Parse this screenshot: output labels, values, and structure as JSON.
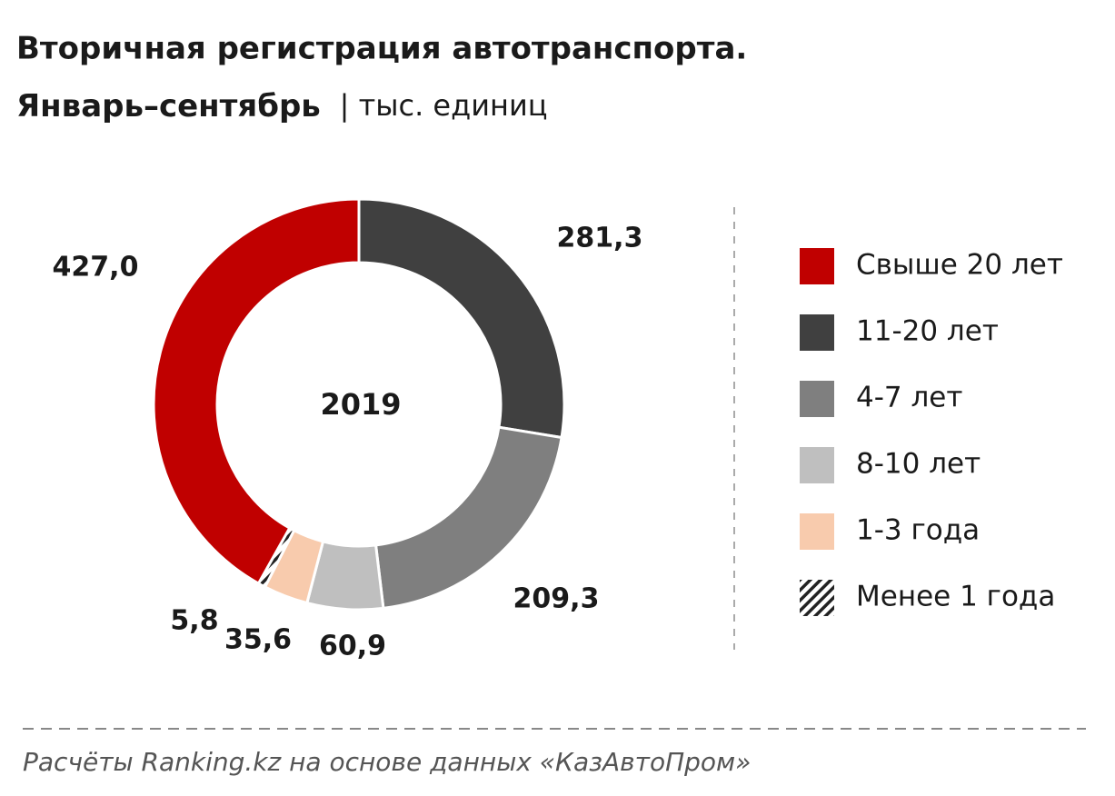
{
  "chart_data": {
    "type": "donut",
    "title": "Вторичная регистрация автотранспорта.",
    "subtitle": "Январь–сентябрь",
    "unit": "| тыс. единиц",
    "center_label": "2019",
    "source": "Расчёты Ranking.kz на основе данных «КазАвтоПром»",
    "series": [
      {
        "name": "Свыше 20 лет",
        "color": "#c00000",
        "values": [
          427.0
        ],
        "value_labels": [
          "427,0"
        ]
      },
      {
        "name": "11-20 лет",
        "color": "#404040",
        "values": [
          281.3
        ],
        "value_labels": [
          "281,3"
        ]
      },
      {
        "name": "4-7 лет",
        "color": "#7f7f7f",
        "values": [
          209.3
        ],
        "value_labels": [
          "209,3"
        ]
      },
      {
        "name": "8-10 лет",
        "color": "#bfbfbf",
        "values": [
          60.9
        ],
        "value_labels": [
          "60,9"
        ]
      },
      {
        "name": "1-3 года",
        "color": "#f8cbad",
        "values": [
          35.6
        ],
        "value_labels": [
          "35,6"
        ]
      },
      {
        "name": "Менее 1 года",
        "color": "#222222",
        "pattern": "hatch",
        "values": [
          5.8
        ],
        "value_labels": [
          "5,8"
        ]
      }
    ]
  }
}
